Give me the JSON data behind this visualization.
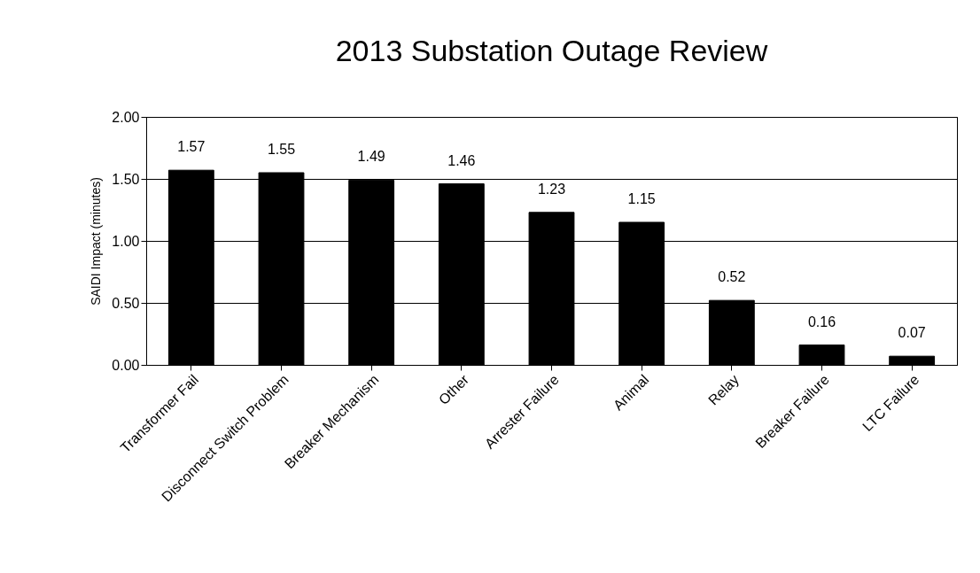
{
  "chart_data": {
    "type": "bar",
    "title": "2013 Substation Outage Review",
    "ylabel": "SAIDI Impact (minutes)",
    "categories": [
      "Transformer Fail",
      "Disconnect Switch Problem",
      "Breaker Mechanism",
      "Other",
      "Arrester Failure",
      "Animal",
      "Relay",
      "Breaker Failure",
      "LTC Failure"
    ],
    "values": [
      1.57,
      1.55,
      1.49,
      1.46,
      1.23,
      1.15,
      0.52,
      0.16,
      0.07
    ],
    "color": "#000000",
    "ylim": [
      0,
      2
    ],
    "yticks": [
      {
        "value": 0,
        "label": "0.00"
      },
      {
        "value": 0.5,
        "label": "0.50"
      },
      {
        "value": 1,
        "label": "1.00"
      },
      {
        "value": 1.5,
        "label": "1.50"
      },
      {
        "value": 2,
        "label": "2.00"
      }
    ],
    "grid": "y",
    "data_labels": true
  }
}
